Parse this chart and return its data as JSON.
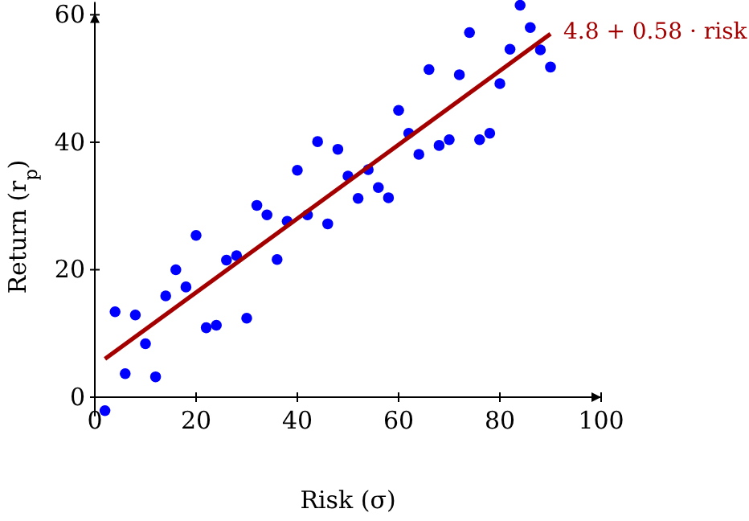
{
  "chart_data": {
    "type": "scatter",
    "xlabel": "Risk (σ)",
    "ylabel": "Return (r$_{p}$)",
    "xlim": [
      0,
      100
    ],
    "ylim": [
      -3,
      62
    ],
    "xticks": [
      0,
      20,
      40,
      60,
      80,
      100
    ],
    "yticks": [
      0,
      20,
      40,
      60
    ],
    "grid": false,
    "legend": false,
    "marker": "circle",
    "series": [
      {
        "color": "#0000ff",
        "x": [
          2,
          4,
          6,
          8,
          10,
          12,
          14,
          16,
          18,
          20,
          22,
          24,
          26,
          28,
          30,
          32,
          34,
          36,
          38,
          40,
          42,
          44,
          46,
          48,
          50,
          52,
          54,
          56,
          58,
          60,
          62,
          64,
          66,
          68,
          70,
          72,
          74,
          76,
          78,
          80,
          82,
          84,
          86,
          88,
          90
        ],
        "values": [
          -2.1,
          13.4,
          3.7,
          12.9,
          8.4,
          3.2,
          15.9,
          20.0,
          17.3,
          25.4,
          10.9,
          11.3,
          21.5,
          22.2,
          12.4,
          30.1,
          28.6,
          21.6,
          27.6,
          35.6,
          28.6,
          40.1,
          27.2,
          38.9,
          34.7,
          31.2,
          35.7,
          32.9,
          31.3,
          45.0,
          41.4,
          38.1,
          51.4,
          39.5,
          40.4,
          50.6,
          57.2,
          40.4,
          41.4,
          49.2,
          54.6,
          61.5,
          58.0,
          54.5,
          51.8
        ]
      },
      {
        "type": "line",
        "name": "4.8 + 0.58 · risk",
        "color": "#a50000",
        "x": [
          2,
          90
        ],
        "values": [
          6.0,
          57.0
        ],
        "line_style": "solid",
        "marker": "none"
      }
    ]
  }
}
